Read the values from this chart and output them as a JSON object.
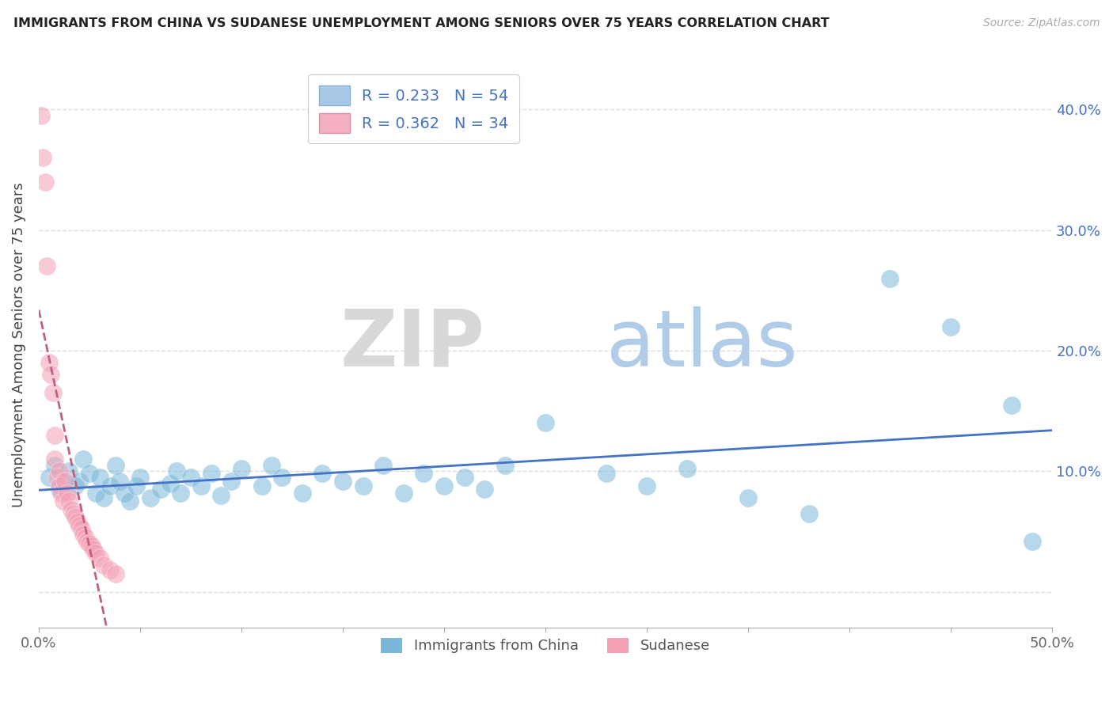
{
  "title": "IMMIGRANTS FROM CHINA VS SUDANESE UNEMPLOYMENT AMONG SENIORS OVER 75 YEARS CORRELATION CHART",
  "source": "Source: ZipAtlas.com",
  "ylabel": "Unemployment Among Seniors over 75 years",
  "xlim": [
    0.0,
    0.5
  ],
  "ylim": [
    -0.03,
    0.44
  ],
  "x_ticks": [
    0.0,
    0.05,
    0.1,
    0.15,
    0.2,
    0.25,
    0.3,
    0.35,
    0.4,
    0.45,
    0.5
  ],
  "x_tick_labels": [
    "0.0%",
    "",
    "",
    "",
    "",
    "",
    "",
    "",
    "",
    "",
    "50.0%"
  ],
  "y_ticks": [
    0.0,
    0.1,
    0.2,
    0.3,
    0.4
  ],
  "right_y_ticks": [
    0.1,
    0.2,
    0.3,
    0.4
  ],
  "right_y_tick_labels": [
    "10.0%",
    "20.0%",
    "30.0%",
    "40.0%"
  ],
  "blue_color": "#7ab8d9",
  "pink_color": "#f4a0b5",
  "trendline_blue": "#4472c4",
  "trendline_pink": "#c06080",
  "china_points": [
    [
      0.005,
      0.095
    ],
    [
      0.008,
      0.105
    ],
    [
      0.01,
      0.085
    ],
    [
      0.012,
      0.09
    ],
    [
      0.015,
      0.1
    ],
    [
      0.018,
      0.088
    ],
    [
      0.02,
      0.092
    ],
    [
      0.022,
      0.11
    ],
    [
      0.025,
      0.098
    ],
    [
      0.028,
      0.082
    ],
    [
      0.03,
      0.095
    ],
    [
      0.032,
      0.078
    ],
    [
      0.035,
      0.088
    ],
    [
      0.038,
      0.105
    ],
    [
      0.04,
      0.092
    ],
    [
      0.042,
      0.082
    ],
    [
      0.045,
      0.075
    ],
    [
      0.048,
      0.088
    ],
    [
      0.05,
      0.095
    ],
    [
      0.055,
      0.078
    ],
    [
      0.06,
      0.085
    ],
    [
      0.065,
      0.09
    ],
    [
      0.068,
      0.1
    ],
    [
      0.07,
      0.082
    ],
    [
      0.075,
      0.095
    ],
    [
      0.08,
      0.088
    ],
    [
      0.085,
      0.098
    ],
    [
      0.09,
      0.08
    ],
    [
      0.095,
      0.092
    ],
    [
      0.1,
      0.102
    ],
    [
      0.11,
      0.088
    ],
    [
      0.115,
      0.105
    ],
    [
      0.12,
      0.095
    ],
    [
      0.13,
      0.082
    ],
    [
      0.14,
      0.098
    ],
    [
      0.15,
      0.092
    ],
    [
      0.16,
      0.088
    ],
    [
      0.17,
      0.105
    ],
    [
      0.18,
      0.082
    ],
    [
      0.19,
      0.098
    ],
    [
      0.2,
      0.088
    ],
    [
      0.21,
      0.095
    ],
    [
      0.22,
      0.085
    ],
    [
      0.23,
      0.105
    ],
    [
      0.25,
      0.14
    ],
    [
      0.28,
      0.098
    ],
    [
      0.3,
      0.088
    ],
    [
      0.32,
      0.102
    ],
    [
      0.35,
      0.078
    ],
    [
      0.38,
      0.065
    ],
    [
      0.42,
      0.26
    ],
    [
      0.45,
      0.22
    ],
    [
      0.48,
      0.155
    ],
    [
      0.49,
      0.042
    ]
  ],
  "sudanese_points": [
    [
      0.001,
      0.395
    ],
    [
      0.002,
      0.36
    ],
    [
      0.003,
      0.34
    ],
    [
      0.004,
      0.27
    ],
    [
      0.005,
      0.19
    ],
    [
      0.006,
      0.18
    ],
    [
      0.007,
      0.165
    ],
    [
      0.008,
      0.13
    ],
    [
      0.008,
      0.11
    ],
    [
      0.009,
      0.095
    ],
    [
      0.01,
      0.1
    ],
    [
      0.01,
      0.088
    ],
    [
      0.011,
      0.082
    ],
    [
      0.012,
      0.075
    ],
    [
      0.013,
      0.092
    ],
    [
      0.014,
      0.082
    ],
    [
      0.015,
      0.075
    ],
    [
      0.016,
      0.068
    ],
    [
      0.017,
      0.065
    ],
    [
      0.018,
      0.062
    ],
    [
      0.019,
      0.058
    ],
    [
      0.02,
      0.055
    ],
    [
      0.021,
      0.052
    ],
    [
      0.022,
      0.048
    ],
    [
      0.023,
      0.045
    ],
    [
      0.024,
      0.042
    ],
    [
      0.025,
      0.04
    ],
    [
      0.026,
      0.038
    ],
    [
      0.027,
      0.035
    ],
    [
      0.028,
      0.032
    ],
    [
      0.03,
      0.028
    ],
    [
      0.032,
      0.022
    ],
    [
      0.035,
      0.018
    ],
    [
      0.038,
      0.015
    ]
  ]
}
